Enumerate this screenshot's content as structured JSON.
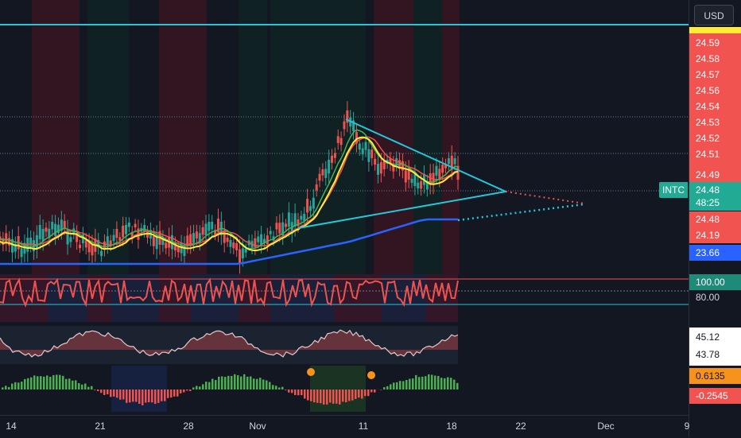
{
  "app": {
    "symbol": "INTC",
    "currency_button": "USD",
    "countdown": "48:25"
  },
  "price_scale": {
    "red_levels": [
      "24.59",
      "24.58",
      "24.57",
      "24.56",
      "24.54",
      "24.53",
      "24.52",
      "24.51",
      "24.49"
    ],
    "current_price": "24.48",
    "lower_red": [
      "24.48",
      "24.19"
    ],
    "ma_level": "23.66"
  },
  "indicator_scales": {
    "stoch_value": "100.00",
    "stoch_level": "80.00",
    "osc_values": [
      "45.12",
      "43.78"
    ],
    "histogram_values": [
      "0.6135",
      "-0.2545"
    ]
  },
  "time_axis": {
    "labels": [
      "14",
      "21",
      "28",
      "Nov",
      "11",
      "18",
      "22",
      "Dec",
      "9"
    ]
  },
  "colors": {
    "background": "#131722",
    "bull_candle": "#26a69a",
    "bear_candle": "#ef5350",
    "trendline": "#26c6da",
    "ma_yellow": "#ffeb3b",
    "ma_blue": "#2962ff",
    "ma_red": "#f05350",
    "ma_green": "#4caf50"
  },
  "icons": {
    "currency": "dropdown-button"
  }
}
